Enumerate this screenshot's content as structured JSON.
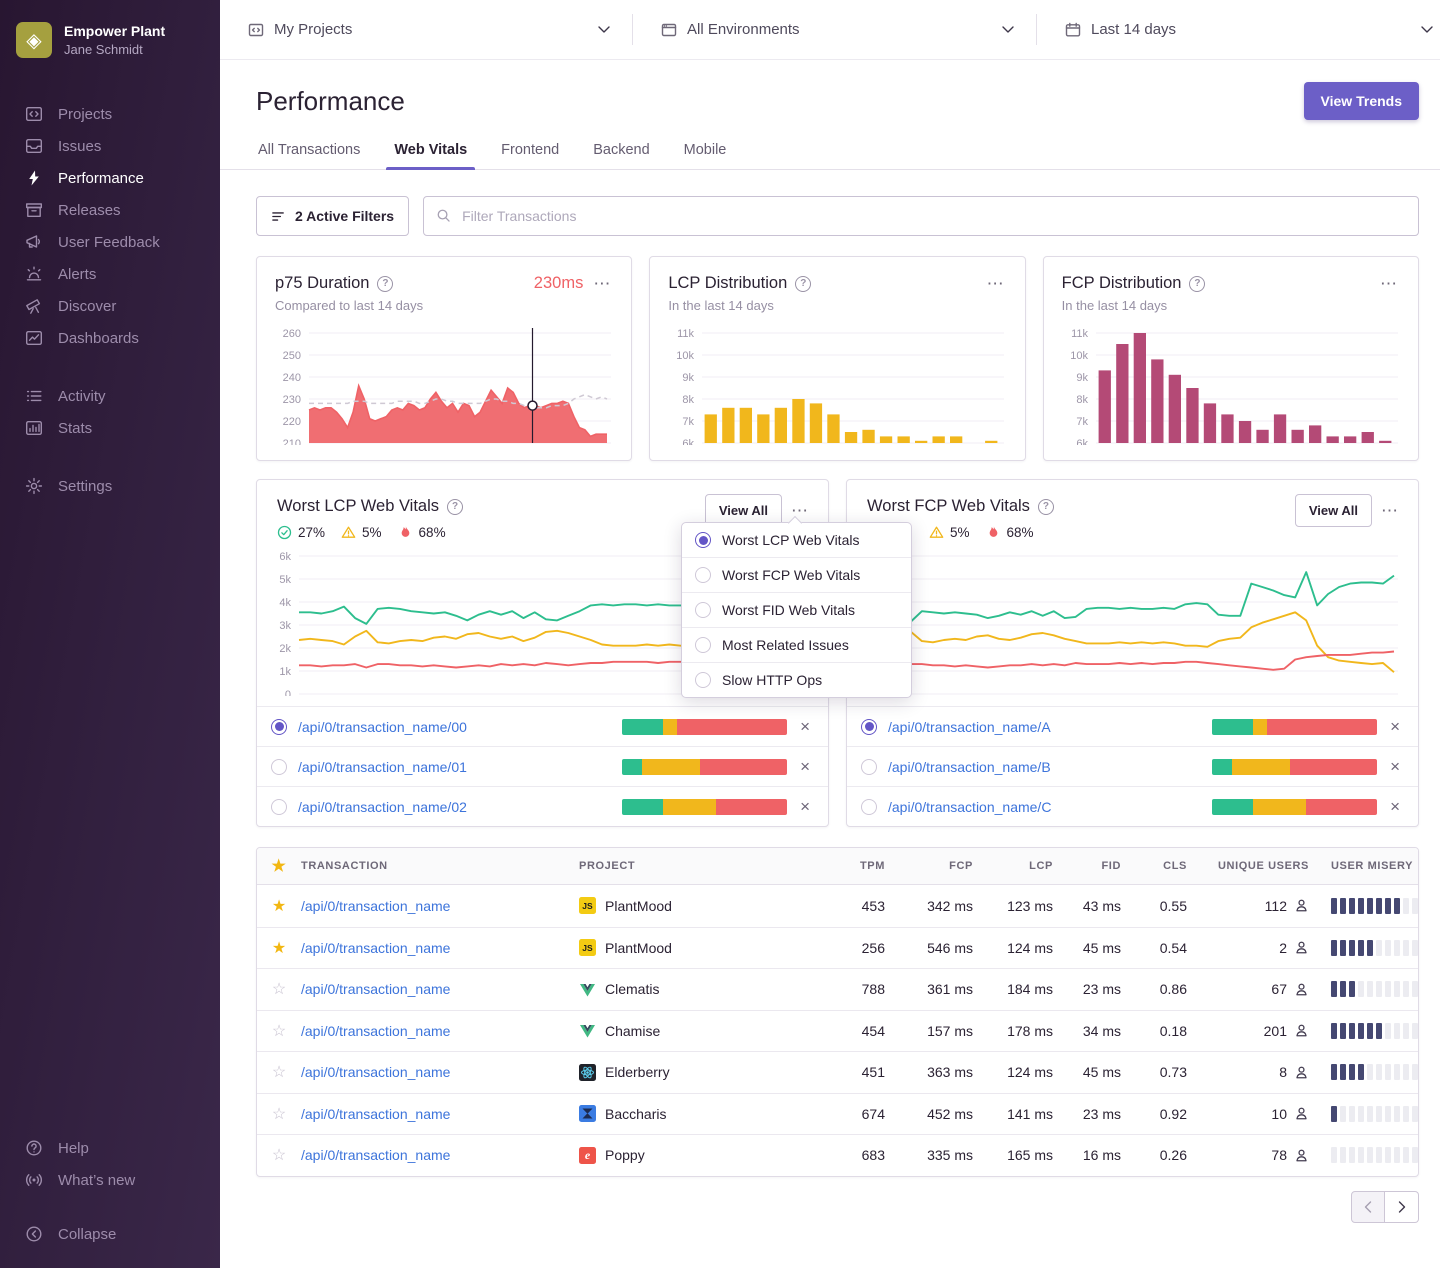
{
  "colors": {
    "accent": "#6c5fc7",
    "link": "#3d74db",
    "good": "#2dbe8e",
    "meh": "#f1b71c",
    "poor": "#ef6266",
    "lcp_bar": "#f1b71c",
    "fcp_bar": "#b44a76",
    "misery_fill": "#454872"
  },
  "sidebar": {
    "org_name": "Empower Plant",
    "user_name": "Jane Schmidt",
    "nav_primary": [
      {
        "label": "Projects",
        "icon": "projects"
      },
      {
        "label": "Issues",
        "icon": "issues"
      },
      {
        "label": "Performance",
        "icon": "performance",
        "active": true
      },
      {
        "label": "Releases",
        "icon": "releases"
      },
      {
        "label": "User Feedback",
        "icon": "feedback"
      },
      {
        "label": "Alerts",
        "icon": "alerts"
      },
      {
        "label": "Discover",
        "icon": "discover"
      },
      {
        "label": "Dashboards",
        "icon": "dashboards"
      }
    ],
    "nav_secondary": [
      {
        "label": "Activity",
        "icon": "activity"
      },
      {
        "label": "Stats",
        "icon": "stats"
      }
    ],
    "nav_tertiary": [
      {
        "label": "Settings",
        "icon": "settings"
      }
    ],
    "nav_bottom": [
      {
        "label": "Help",
        "icon": "help"
      },
      {
        "label": "What’s new",
        "icon": "whatsnew"
      }
    ],
    "nav_collapse": [
      {
        "label": "Collapse",
        "icon": "collapse"
      }
    ]
  },
  "topbar": {
    "project_filter": "My Projects",
    "environment_filter": "All Environments",
    "date_filter": "Last 14 days"
  },
  "header": {
    "title": "Performance",
    "view_trends_label": "View Trends"
  },
  "tabs": [
    {
      "label": "All Transactions"
    },
    {
      "label": "Web Vitals",
      "active": true
    },
    {
      "label": "Frontend"
    },
    {
      "label": "Backend"
    },
    {
      "label": "Mobile"
    }
  ],
  "filter_bar": {
    "active_filters_label": "2 Active Filters",
    "search_placeholder": "Filter Transactions"
  },
  "chart_data": [
    {
      "id": "p75",
      "type": "area",
      "title": "p75 Duration",
      "current_value": "230ms",
      "subtitle": "Compared to last 14 days",
      "ylim": [
        210,
        260
      ],
      "yticks": [
        {
          "v": 210,
          "l": "210"
        },
        {
          "v": 220,
          "l": "220"
        },
        {
          "v": 230,
          "l": "230"
        },
        {
          "v": 240,
          "l": "240"
        },
        {
          "v": 250,
          "l": "250"
        },
        {
          "v": 260,
          "l": "260"
        }
      ],
      "series": [
        {
          "name": "p75 duration",
          "color": "#ef6266",
          "values": [
            225,
            226,
            225,
            226,
            226,
            224,
            221,
            217,
            224,
            236,
            230,
            221,
            220,
            221,
            222,
            225,
            226,
            225,
            228,
            227,
            225,
            226,
            230,
            233,
            229,
            226,
            228,
            224,
            228,
            227,
            222,
            224,
            229,
            234,
            231,
            228,
            235,
            233,
            228,
            226,
            227,
            227,
            226,
            227,
            228,
            228,
            229,
            228,
            222,
            217,
            216,
            213,
            214,
            214,
            214
          ]
        },
        {
          "name": "previous period",
          "color": "#cfc9d4",
          "dashed": true,
          "values": [
            228,
            228,
            228,
            228,
            228,
            228,
            228,
            228,
            229,
            229,
            229,
            228,
            228,
            228,
            228,
            228,
            229,
            229,
            229,
            229,
            228,
            228,
            229,
            230,
            230,
            229,
            229,
            228,
            228,
            228,
            228,
            228,
            229,
            230,
            230,
            229,
            229,
            228,
            228,
            227,
            227,
            226,
            226,
            226,
            227,
            227,
            227,
            228,
            230,
            231,
            232,
            231,
            230,
            231,
            230
          ]
        }
      ],
      "marker": {
        "frac": 0.75,
        "value": 227
      }
    },
    {
      "id": "lcp_dist",
      "type": "bar",
      "title": "LCP Distribution",
      "subtitle": "In the last 14 days",
      "color": "#f1b71c",
      "ylim": [
        6000,
        11000
      ],
      "yticks": [
        {
          "v": 6000,
          "l": "6k"
        },
        {
          "v": 7000,
          "l": "7k"
        },
        {
          "v": 8000,
          "l": "8k"
        },
        {
          "v": 9000,
          "l": "9k"
        },
        {
          "v": 10000,
          "l": "10k"
        },
        {
          "v": 11000,
          "l": "11k"
        }
      ],
      "values": [
        7300,
        7600,
        7600,
        7300,
        7600,
        8000,
        7800,
        7300,
        6500,
        6600,
        6300,
        6300,
        6100,
        6300,
        6300,
        null,
        6100
      ]
    },
    {
      "id": "fcp_dist",
      "type": "bar",
      "title": "FCP Distribution",
      "subtitle": "In the last 14 days",
      "color": "#b44a76",
      "ylim": [
        6000,
        11000
      ],
      "yticks": [
        {
          "v": 6000,
          "l": "6k"
        },
        {
          "v": 7000,
          "l": "7k"
        },
        {
          "v": 8000,
          "l": "8k"
        },
        {
          "v": 9000,
          "l": "9k"
        },
        {
          "v": 10000,
          "l": "10k"
        },
        {
          "v": 11000,
          "l": "11k"
        }
      ],
      "values": [
        9300,
        10500,
        11000,
        9800,
        9100,
        8500,
        7800,
        7300,
        7000,
        6600,
        7300,
        6600,
        6800,
        6300,
        6300,
        6500,
        6100
      ]
    },
    {
      "id": "lcp_vitals",
      "type": "line",
      "ylim": [
        0,
        6000
      ],
      "yticks": [
        {
          "v": 0,
          "l": "0"
        },
        {
          "v": 1000,
          "l": "1k"
        },
        {
          "v": 2000,
          "l": "2k"
        },
        {
          "v": 3000,
          "l": "3k"
        },
        {
          "v": 4000,
          "l": "4k"
        },
        {
          "v": 5000,
          "l": "5k"
        },
        {
          "v": 6000,
          "l": "6k"
        }
      ],
      "series": [
        {
          "name": "good",
          "color": "#2dbe8e",
          "values": [
            3550,
            3550,
            3500,
            3600,
            3800,
            3300,
            3050,
            3700,
            3750,
            3700,
            3600,
            3550,
            3500,
            3550,
            3400,
            3200,
            3450,
            3600,
            3450,
            3600,
            3300,
            3550,
            3250,
            3200,
            3400,
            3600,
            3850,
            3900,
            3850,
            3900,
            3900,
            3850,
            3900,
            3850,
            3850,
            3800,
            4100,
            4100,
            4150,
            3500,
            3400,
            3400,
            5150,
            4950,
            4750,
            4650
          ]
        },
        {
          "name": "meh",
          "color": "#f1b71c",
          "values": [
            2350,
            2400,
            2350,
            2300,
            2150,
            2500,
            2750,
            2250,
            2200,
            2300,
            2350,
            2300,
            2450,
            2500,
            2400,
            2600,
            2650,
            2500,
            2400,
            2500,
            2300,
            2450,
            2700,
            2750,
            2650,
            2500,
            2350,
            2150,
            2100,
            2100,
            2100,
            2150,
            2100,
            2150,
            2100,
            2100,
            2050,
            2000,
            1950,
            2000,
            2400,
            2450,
            2500,
            2950,
            3100,
            3450
          ]
        },
        {
          "name": "poor",
          "color": "#ef6266",
          "values": [
            1250,
            1250,
            1200,
            1250,
            1250,
            1300,
            1150,
            1300,
            1300,
            1250,
            1250,
            1200,
            1250,
            1200,
            1150,
            1200,
            1250,
            1200,
            1300,
            1250,
            1300,
            1250,
            1350,
            1300,
            1250,
            1300,
            1350,
            1350,
            1400,
            1400,
            1400,
            1400,
            1350,
            1400,
            1400,
            1400,
            1400,
            1450,
            1400,
            1450,
            1300,
            1250,
            1200,
            1100,
            1050,
            950
          ]
        }
      ]
    },
    {
      "id": "fcp_vitals",
      "type": "line",
      "ylim": [
        0,
        6000
      ],
      "yticks": [
        {
          "v": 0,
          "l": "0"
        },
        {
          "v": 1000,
          "l": "1k"
        },
        {
          "v": 2000,
          "l": "2k"
        },
        {
          "v": 3000,
          "l": "3k"
        },
        {
          "v": 4000,
          "l": "4k"
        },
        {
          "v": 5000,
          "l": "5k"
        },
        {
          "v": 6000,
          "l": "6k"
        }
      ],
      "series": [
        {
          "name": "good",
          "color": "#2dbe8e",
          "values": [
            3600,
            3400,
            3150,
            3600,
            3550,
            3500,
            3550,
            3500,
            3450,
            3300,
            3400,
            3550,
            3450,
            3600,
            3400,
            3600,
            3300,
            3350,
            3700,
            3750,
            3750,
            3700,
            3750,
            3700,
            3700,
            3750,
            3700,
            3900,
            3950,
            3900,
            3450,
            3400,
            3400,
            4800,
            4650,
            4500,
            4300,
            4200,
            5300,
            3850,
            4350,
            4650,
            4800,
            4850,
            4850,
            4800,
            5150
          ]
        },
        {
          "name": "meh",
          "color": "#f1b71c",
          "values": [
            2300,
            2450,
            2700,
            2300,
            2250,
            2350,
            2400,
            2350,
            2500,
            2550,
            2400,
            2350,
            2450,
            2600,
            2650,
            2550,
            2400,
            2300,
            2200,
            2200,
            2200,
            2250,
            2200,
            2250,
            2200,
            2250,
            2200,
            2100,
            2100,
            2050,
            2300,
            2400,
            2450,
            2900,
            3100,
            3250,
            3400,
            3550,
            3200,
            2100,
            1600,
            1450,
            1400,
            1350,
            1300,
            1350,
            950
          ]
        },
        {
          "name": "poor",
          "color": "#ef6266",
          "values": [
            1250,
            1150,
            1300,
            1300,
            1250,
            1250,
            1200,
            1250,
            1200,
            1150,
            1200,
            1250,
            1250,
            1300,
            1250,
            1300,
            1250,
            1350,
            1300,
            1300,
            1300,
            1350,
            1300,
            1350,
            1300,
            1350,
            1350,
            1400,
            1400,
            1350,
            1300,
            1250,
            1200,
            1150,
            1100,
            1050,
            1100,
            1500,
            1600,
            1650,
            1700,
            1700,
            1700,
            1750,
            1800,
            1800,
            1850
          ]
        }
      ]
    }
  ],
  "vitals": {
    "lcp": {
      "title": "Worst LCP Web Vitals",
      "pass_pct": "27%",
      "warn_pct": "5%",
      "fail_pct": "68%",
      "view_all_label": "View All",
      "rows": [
        {
          "label": "/api/0/transaction_name/00",
          "selected": true,
          "segments": [
            25,
            8,
            67
          ]
        },
        {
          "label": "/api/0/transaction_name/01",
          "selected": false,
          "segments": [
            12,
            35,
            53
          ]
        },
        {
          "label": "/api/0/transaction_name/02",
          "selected": false,
          "segments": [
            25,
            32,
            43
          ]
        }
      ]
    },
    "fcp": {
      "title": "Worst FCP Web Vitals",
      "warn_pct": "5%",
      "fail_pct": "68%",
      "view_all_label": "View All",
      "rows": [
        {
          "label": "/api/0/transaction_name/A",
          "selected": true,
          "segments": [
            25,
            8,
            67
          ]
        },
        {
          "label": "/api/0/transaction_name/B",
          "selected": false,
          "segments": [
            12,
            35,
            53
          ]
        },
        {
          "label": "/api/0/transaction_name/C",
          "selected": false,
          "segments": [
            25,
            32,
            43
          ]
        }
      ]
    }
  },
  "context_menu": {
    "items": [
      {
        "label": "Worst LCP Web Vitals",
        "selected": true
      },
      {
        "label": "Worst FCP Web Vitals",
        "selected": false
      },
      {
        "label": "Worst FID Web Vitals",
        "selected": false
      },
      {
        "label": "Most Related Issues",
        "selected": false
      },
      {
        "label": "Slow HTTP Ops",
        "selected": false
      }
    ]
  },
  "table": {
    "columns": [
      "TRANSACTION",
      "PROJECT",
      "TPM",
      "FCP",
      "LCP",
      "FID",
      "CLS",
      "UNIQUE USERS",
      "USER MISERY"
    ],
    "rows": [
      {
        "starred": true,
        "transaction": "/api/0/transaction_name",
        "project": "PlantMood",
        "platform": "javascript",
        "tpm": "453",
        "fcp": "342 ms",
        "lcp": "123 ms",
        "fid": "43 ms",
        "cls": "0.55",
        "unique_users": "112",
        "misery_filled": 8
      },
      {
        "starred": true,
        "transaction": "/api/0/transaction_name",
        "project": "PlantMood",
        "platform": "javascript",
        "tpm": "256",
        "fcp": "546 ms",
        "lcp": "124 ms",
        "fid": "45 ms",
        "cls": "0.54",
        "unique_users": "2",
        "misery_filled": 5
      },
      {
        "starred": false,
        "transaction": "/api/0/transaction_name",
        "project": "Clematis",
        "platform": "vue",
        "tpm": "788",
        "fcp": "361 ms",
        "lcp": "184 ms",
        "fid": "23 ms",
        "cls": "0.86",
        "unique_users": "67",
        "misery_filled": 3
      },
      {
        "starred": false,
        "transaction": "/api/0/transaction_name",
        "project": "Chamise",
        "platform": "vue",
        "tpm": "454",
        "fcp": "157 ms",
        "lcp": "178 ms",
        "fid": "34 ms",
        "cls": "0.18",
        "unique_users": "201",
        "misery_filled": 6
      },
      {
        "starred": false,
        "transaction": "/api/0/transaction_name",
        "project": "Elderberry",
        "platform": "react",
        "tpm": "451",
        "fcp": "363 ms",
        "lcp": "124 ms",
        "fid": "45 ms",
        "cls": "0.73",
        "unique_users": "8",
        "misery_filled": 4
      },
      {
        "starred": false,
        "transaction": "/api/0/transaction_name",
        "project": "Baccharis",
        "platform": "webpack",
        "tpm": "674",
        "fcp": "452 ms",
        "lcp": "141 ms",
        "fid": "23 ms",
        "cls": "0.92",
        "unique_users": "10",
        "misery_filled": 1
      },
      {
        "starred": false,
        "transaction": "/api/0/transaction_name",
        "project": "Poppy",
        "platform": "ember",
        "tpm": "683",
        "fcp": "335 ms",
        "lcp": "165 ms",
        "fid": "16 ms",
        "cls": "0.26",
        "unique_users": "78",
        "misery_filled": 0
      }
    ],
    "misery_segments": 10
  },
  "pagination": {
    "prev_enabled": false,
    "next_enabled": true
  }
}
